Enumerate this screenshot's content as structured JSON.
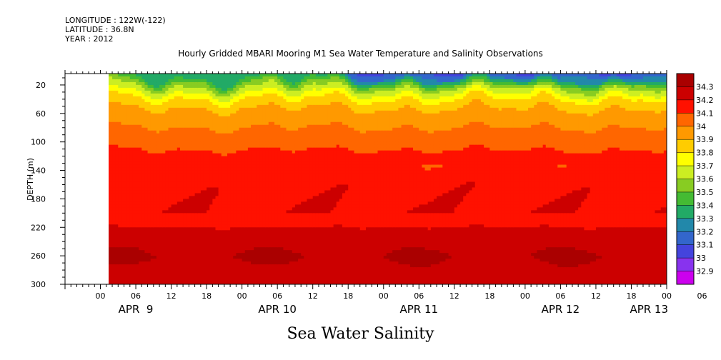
{
  "header": {
    "longitude": "LONGITUDE : 122W(-122)",
    "latitude": "LATITUDE : 36.8N",
    "year": "YEAR : 2012"
  },
  "chart_data": {
    "type": "heatmap",
    "title": "Hourly Gridded MBARI Mooring M1 Sea Water Temperature and Salinity Observations",
    "subtitle": "Sea Water Salinity",
    "ylabel": "DEPTH (m)",
    "xlabel": "",
    "y_reversed": true,
    "ylim": [
      300,
      4
    ],
    "y_ticks": [
      20,
      60,
      100,
      140,
      180,
      220,
      260,
      300
    ],
    "x_range_hours": [
      -6,
      96
    ],
    "x_hour_tick_labels": [
      "00",
      "06",
      "12",
      "18",
      "00",
      "06",
      "12",
      "18",
      "00",
      "06",
      "12",
      "18",
      "00",
      "06",
      "12",
      "18",
      "00",
      "06",
      "12",
      "18",
      "00"
    ],
    "x_hour_tick_start": 0,
    "x_hour_tick_step": 6,
    "date_labels": [
      {
        "label": "APR  9",
        "hour": 6
      },
      {
        "label": "APR 10",
        "hour": 30
      },
      {
        "label": "APR 11",
        "hour": 54
      },
      {
        "label": "APR 12",
        "hour": 78
      },
      {
        "label": "APR 13",
        "hour": 93
      }
    ],
    "data_start_hour": 0,
    "colorbar": {
      "levels": [
        32.9,
        33.0,
        33.1,
        33.2,
        33.3,
        33.4,
        33.5,
        33.6,
        33.7,
        33.8,
        33.9,
        34.0,
        34.1,
        34.2,
        34.3
      ],
      "labels": [
        "32.9",
        "33",
        "33.1",
        "33.2",
        "33.3",
        "33.4",
        "33.5",
        "33.6",
        "33.7",
        "33.8",
        "33.9",
        "34",
        "34.1",
        "34.2",
        "34.3"
      ],
      "colors": [
        "#cc00ee",
        "#8833ee",
        "#4444dd",
        "#3366cc",
        "#2288aa",
        "#22aa66",
        "#44bb33",
        "#88cc22",
        "#ccee22",
        "#ffff00",
        "#ffcc00",
        "#ff9900",
        "#ff6600",
        "#ff1100",
        "#cc0000",
        "#aa0000"
      ]
    },
    "depth_profile_salinity": [
      {
        "depth": 10,
        "salinity": 33.35
      },
      {
        "depth": 20,
        "salinity": 33.55
      },
      {
        "depth": 40,
        "salinity": 33.8
      },
      {
        "depth": 60,
        "salinity": 33.95
      },
      {
        "depth": 80,
        "salinity": 34.0
      },
      {
        "depth": 100,
        "salinity": 34.08
      },
      {
        "depth": 140,
        "salinity": 34.15
      },
      {
        "depth": 180,
        "salinity": 34.17
      },
      {
        "depth": 220,
        "salinity": 34.2
      },
      {
        "depth": 260,
        "salinity": 34.3
      },
      {
        "depth": 300,
        "salinity": 34.22
      }
    ],
    "top_fresh_layer_start_hour": 36
  }
}
